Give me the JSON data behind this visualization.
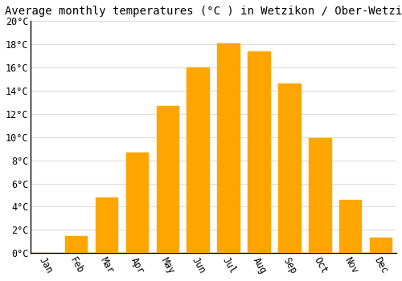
{
  "title": "Average monthly temperatures (°C ) in Wetzikon / Ober-Wetzikon",
  "months": [
    "Jan",
    "Feb",
    "Mar",
    "Apr",
    "May",
    "Jun",
    "Jul",
    "Aug",
    "Sep",
    "Oct",
    "Nov",
    "Dec"
  ],
  "values": [
    0.0,
    1.5,
    4.8,
    8.7,
    12.7,
    16.0,
    18.1,
    17.4,
    14.6,
    9.9,
    4.6,
    1.3
  ],
  "bar_color": "#FFA500",
  "bar_edge_color": "#FFA500",
  "background_color": "#FFFFFF",
  "grid_color": "#dddddd",
  "ylim": [
    0,
    20
  ],
  "ytick_step": 2,
  "title_fontsize": 10,
  "tick_fontsize": 8.5,
  "font_family": "monospace"
}
